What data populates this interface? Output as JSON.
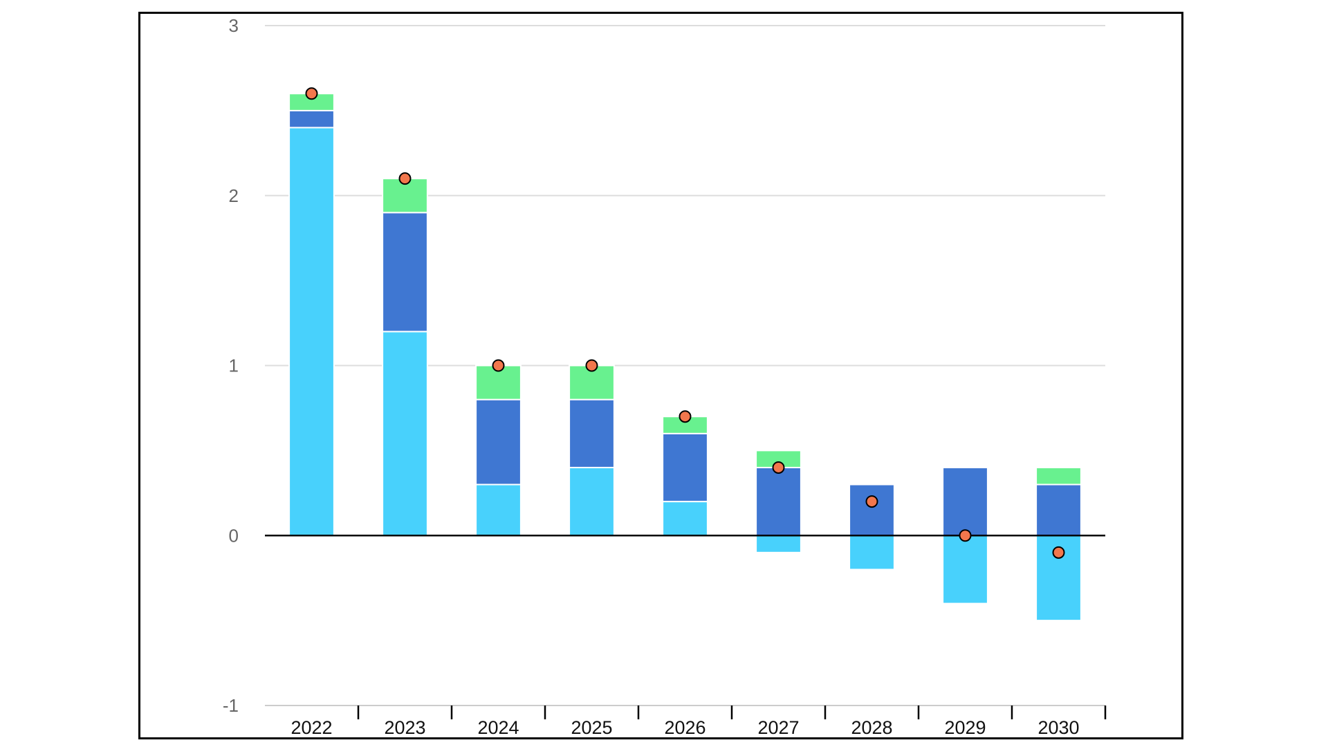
{
  "chart_data": {
    "type": "bar",
    "stacked": true,
    "categories": [
      "2022",
      "2023",
      "2024",
      "2025",
      "2026",
      "2027",
      "2028",
      "2029",
      "2030"
    ],
    "series": [
      {
        "values": [
          2.4,
          1.2,
          0.3,
          0.4,
          0.2,
          -0.1,
          -0.2,
          -0.4,
          -0.5
        ],
        "color": "#48d1fc"
      },
      {
        "values": [
          0.1,
          0.7,
          0.5,
          0.4,
          0.4,
          0.4,
          0.3,
          0.4,
          0.3
        ],
        "color": "#3f77d2"
      },
      {
        "values": [
          0.1,
          0.2,
          0.2,
          0.2,
          0.1,
          0.1,
          0.0,
          0.0,
          0.1
        ],
        "color": "#68f18f"
      }
    ],
    "total_markers": {
      "values": [
        2.6,
        2.1,
        1.0,
        1.0,
        0.7,
        0.4,
        0.2,
        0.0,
        -0.1
      ],
      "color": "#f2774d"
    },
    "ylim": [
      -1,
      3
    ],
    "yticks": [
      -1,
      0,
      1,
      2,
      3
    ],
    "ytick_labels": [
      "-1",
      "0",
      "1",
      "2",
      "3"
    ],
    "grid": true,
    "legend": "none"
  }
}
